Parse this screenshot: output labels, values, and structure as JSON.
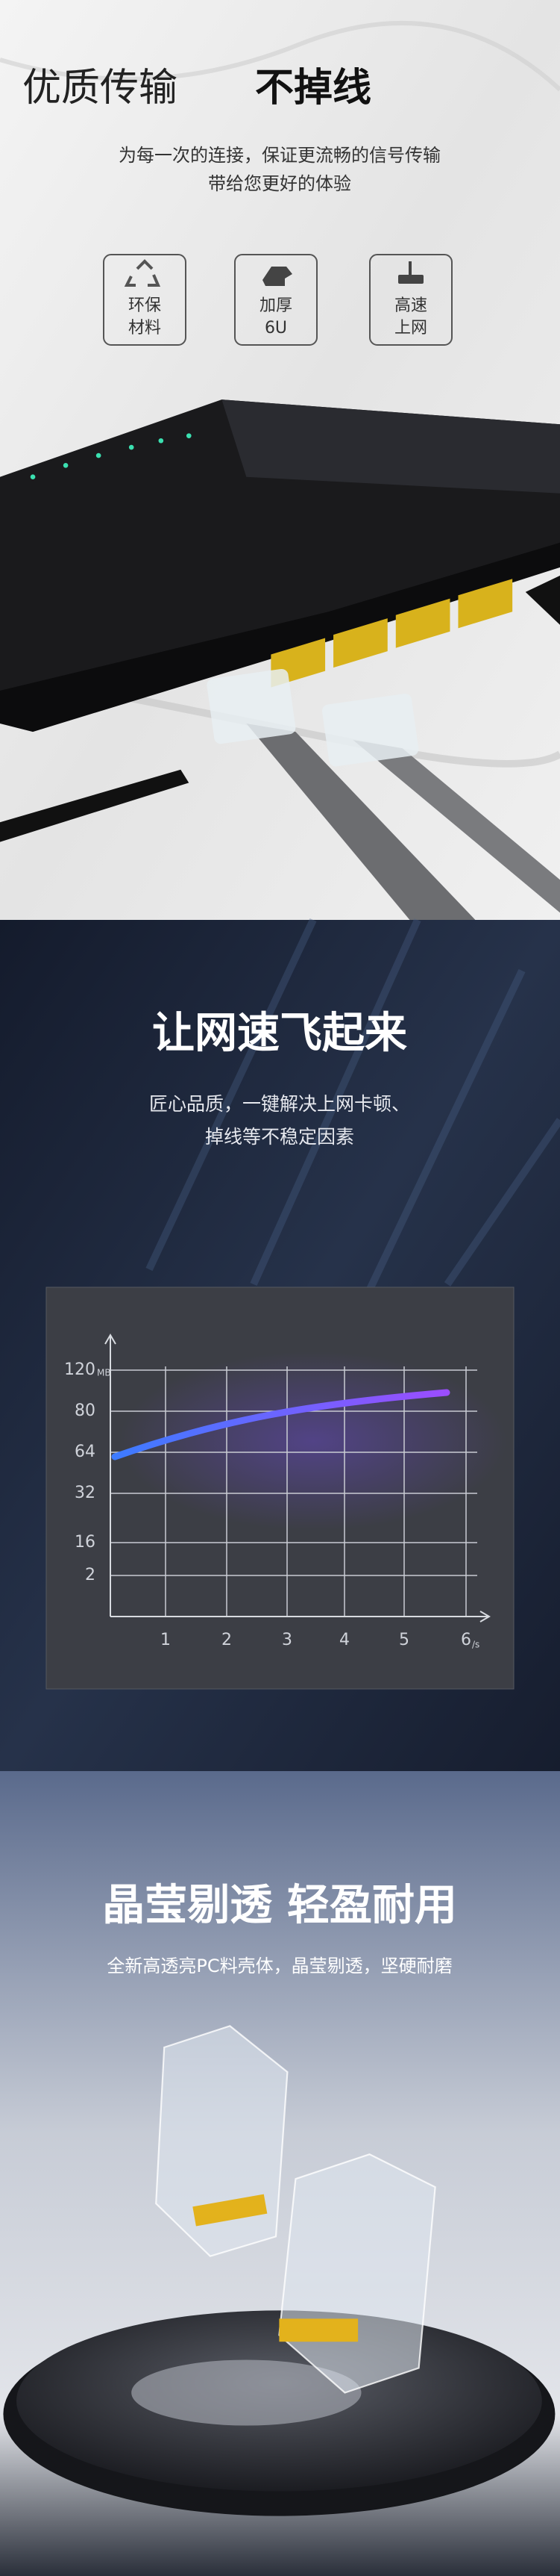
{
  "hero": {
    "title": "优质传输",
    "title_emphasis": "不掉线",
    "subtitle_lines": [
      "为每一次的连接，保证更流畅的信号传输",
      "带给您更好的体验"
    ],
    "features": [
      {
        "label_lines": [
          "环保",
          "材料"
        ]
      },
      {
        "label_lines": [
          "加厚",
          "6U"
        ]
      },
      {
        "label_lines": [
          "高速",
          "上网"
        ]
      }
    ]
  },
  "speed": {
    "title": "让网速飞起来",
    "subtitle_lines": [
      "匠心品质，一键解决上网卡顿、",
      "掉线等不稳定因素"
    ],
    "chart": {
      "y_labels": [
        120,
        80,
        64,
        32,
        16,
        2
      ],
      "y_unit": "MB",
      "x_labels": [
        1,
        2,
        3,
        4,
        5,
        6
      ],
      "x_unit": "/s"
    }
  },
  "clarity": {
    "title": "晶莹剔透 轻盈耐用",
    "subtitle": "全新高透亮PC料壳体，晶莹剔透，坚硬耐磨"
  }
}
